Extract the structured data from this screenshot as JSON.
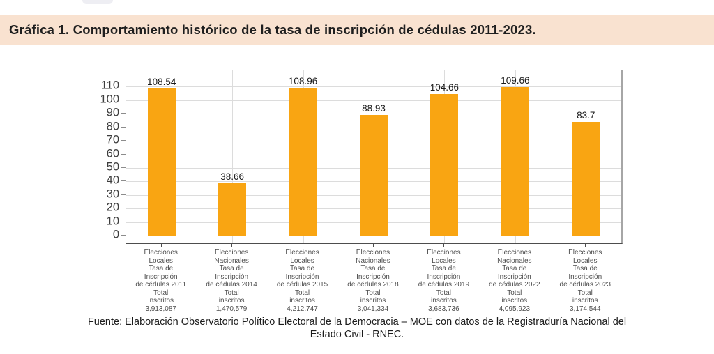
{
  "caption": {
    "text": "Gráfica 1. Comportamiento histórico de la tasa de inscripción de cédulas 2011-2023.",
    "band_color": "#f9e2d0"
  },
  "footer": {
    "line1": "Fuente: Elaboración Observatorio Político Electoral de la Democracia – MOE con datos de la Registraduría Nacional del",
    "line2": "Estado Civil - RNEC."
  },
  "chart_data": {
    "type": "bar",
    "title": "Gráfica 1. Comportamiento histórico de la tasa de inscripción de cédulas 2011-2023.",
    "values": [
      108.54,
      38.66,
      108.96,
      88.93,
      104.66,
      109.66,
      83.7
    ],
    "value_labels": [
      "108.54",
      "38.66",
      "108.96",
      "88.93",
      "104.66",
      "109.66",
      "83.7"
    ],
    "categories": [
      [
        "Elecciones",
        "Locales",
        "Tasa de",
        "Inscripción",
        "de cédulas 2011",
        "Total",
        "inscritos",
        "3,913,087"
      ],
      [
        "Elecciones",
        "Nacionales",
        "Tasa de",
        "Inscripción",
        "de cédulas 2014",
        "Total",
        "inscritos",
        "1,470,579"
      ],
      [
        "Elecciones",
        "Locales",
        "Tasa de",
        "Inscripción",
        "de cédulas 2015",
        "Total",
        "inscritos",
        "4,212,747"
      ],
      [
        "Elecciones",
        "Nacionales",
        "Tasa de",
        "Inscripción",
        "de cédulas 2018",
        "Total",
        "inscritos",
        "3,041,334"
      ],
      [
        "Elecciones",
        "Locales",
        "Tasa de",
        "Inscripción",
        "de cédulas 2019",
        "Total",
        "inscritos",
        "3,683,736"
      ],
      [
        "Elecciones",
        "Nacionales",
        "Tasa de",
        "Inscripción",
        "de cédulas 2022",
        "Total",
        "inscritos",
        "4,095,923"
      ],
      [
        "Elecciones",
        "Locales",
        "Tasa de",
        "Inscripción",
        "de cédulas 2023",
        "Total",
        "inscritos",
        "3,174,544"
      ]
    ],
    "y_ticks": [
      0,
      10,
      20,
      30,
      40,
      50,
      60,
      70,
      80,
      90,
      100,
      110
    ],
    "ylim": [
      -5,
      122
    ],
    "grid": true,
    "legend": null,
    "bar_color": "#f9a512",
    "source": "Fuente: Elaboración Observatorio Político Electoral de la Democracia – MOE con datos de la Registraduría Nacional del Estado Civil - RNEC."
  }
}
